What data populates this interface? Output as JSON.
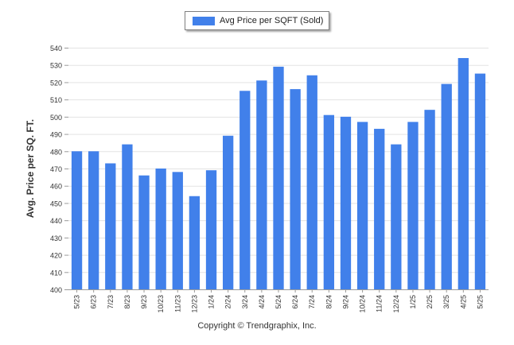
{
  "legend": {
    "label": "Avg Price per SQFT (Sold)"
  },
  "footer": {
    "copyright": "Copyright © Trendgraphix, Inc."
  },
  "colors": {
    "bar": "#4180ea",
    "grid": "#e3e3e3",
    "axis": "#9a9a9a",
    "text": "#333333"
  },
  "chart_data": {
    "type": "bar",
    "title": "",
    "xlabel": "",
    "ylabel": "Avg. Price per SQ. FT.",
    "ylim": [
      400,
      540
    ],
    "yticks": [
      400,
      410,
      420,
      430,
      440,
      450,
      460,
      470,
      480,
      490,
      500,
      510,
      520,
      530,
      540
    ],
    "grid": true,
    "legend_position": "top-center",
    "categories": [
      "5/23",
      "6/23",
      "7/23",
      "8/23",
      "9/23",
      "10/23",
      "11/23",
      "12/23",
      "1/24",
      "2/24",
      "3/24",
      "4/24",
      "5/24",
      "6/24",
      "7/24",
      "8/24",
      "9/24",
      "10/24",
      "11/24",
      "12/24",
      "1/25",
      "2/25",
      "3/25",
      "4/25",
      "5/25"
    ],
    "series": [
      {
        "name": "Avg Price per SQFT (Sold)",
        "values": [
          480,
          480,
          473,
          484,
          466,
          470,
          468,
          454,
          469,
          489,
          515,
          521,
          529,
          516,
          524,
          501,
          500,
          497,
          493,
          484,
          497,
          504,
          519,
          534,
          525
        ]
      }
    ]
  }
}
